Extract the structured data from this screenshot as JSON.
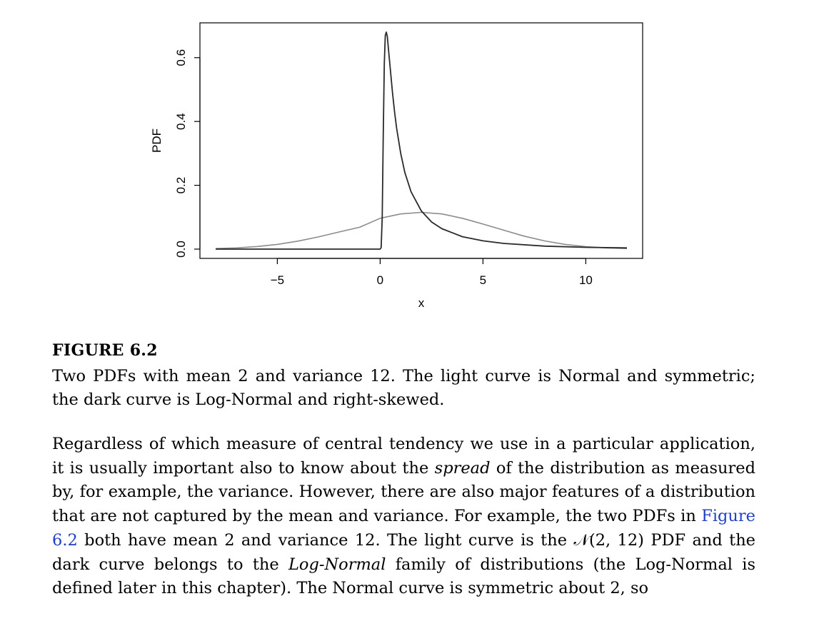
{
  "chart_data": {
    "type": "line",
    "title": "",
    "xlabel": "x",
    "ylabel": "PDF",
    "xlim": [
      -8,
      12
    ],
    "ylim": [
      0,
      0.68
    ],
    "xticks": [
      -5,
      0,
      5,
      10
    ],
    "xtick_labels": [
      "−5",
      "0",
      "5",
      "10"
    ],
    "yticks": [
      0.0,
      0.2,
      0.4,
      0.6
    ],
    "ytick_labels": [
      "0.0",
      "0.2",
      "0.4",
      "0.6"
    ],
    "grid": false,
    "series": [
      {
        "shade": "light",
        "color": "#8c8c8c",
        "x": [
          -8,
          -7,
          -6,
          -5,
          -4,
          -3,
          -2,
          -1,
          0,
          1,
          2,
          3,
          4,
          5,
          6,
          7,
          8,
          9,
          10,
          11,
          12
        ],
        "y": [
          0.0017,
          0.0039,
          0.008,
          0.0148,
          0.025,
          0.0383,
          0.0537,
          0.0685,
          0.0967,
          0.1102,
          0.1152,
          0.1102,
          0.0967,
          0.0785,
          0.0594,
          0.0408,
          0.0257,
          0.0148,
          0.0078,
          0.0038,
          0.0017
        ]
      },
      {
        "shade": "dark",
        "color": "#2a2a2a",
        "x": [
          -8,
          -2,
          0,
          0.05,
          0.1,
          0.15,
          0.2,
          0.25,
          0.3,
          0.35,
          0.4,
          0.5,
          0.6,
          0.7,
          0.8,
          1.0,
          1.2,
          1.5,
          2.0,
          2.5,
          3.0,
          4.0,
          5.0,
          6.0,
          8.0,
          10.0,
          12.0
        ],
        "y": [
          0,
          0,
          0,
          0.005,
          0.1,
          0.35,
          0.58,
          0.67,
          0.68,
          0.665,
          0.63,
          0.56,
          0.49,
          0.43,
          0.38,
          0.3,
          0.24,
          0.18,
          0.12,
          0.085,
          0.064,
          0.039,
          0.026,
          0.018,
          0.0095,
          0.0057,
          0.0037
        ]
      }
    ]
  },
  "caption": {
    "label": "FIGURE 6.2",
    "text": "Two PDFs with mean 2 and variance 12. The light curve is Normal and symmetric; the dark curve is Log-Normal and right-skewed."
  },
  "body": {
    "p1": "Regardless of which measure of central tendency we use in a particular application, it is usually important also to know about the ",
    "spread": "spread",
    "p2": " of the distribution as measured by, for example, the variance. However, there are also major features of a distribution that are not captured by the mean and variance. For example, the two PDFs in ",
    "figure_ref": "Figure 6.2",
    "p3": " both have mean 2 and variance 12. The light curve is the 𝒩(2, 12) PDF and the dark curve belongs to the ",
    "lognormal": "Log-Normal",
    "p4": " family of distributions (the Log-Normal is defined later in this chapter). The Normal curve is symmetric about 2, so"
  }
}
